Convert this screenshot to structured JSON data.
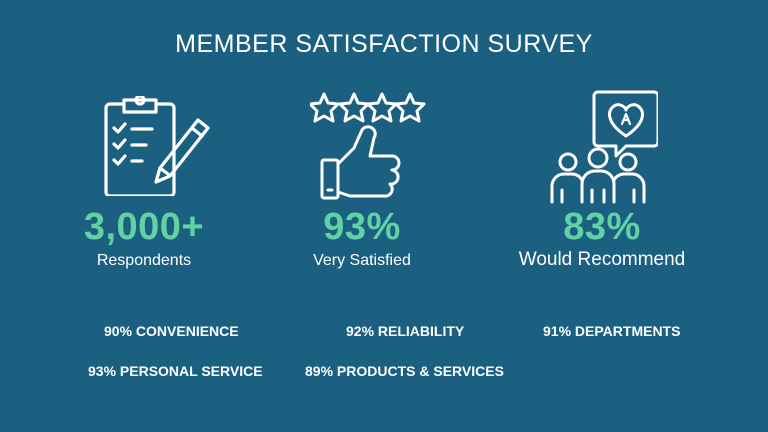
{
  "title": "MEMBER SATISFACTION SURVEY",
  "colors": {
    "background": "#1b6080",
    "accent": "#63d1a3",
    "text": "#ffffff"
  },
  "highlights": [
    {
      "icon": "clipboard-checklist-icon",
      "value": "3,000+",
      "label": "Respondents"
    },
    {
      "icon": "thumbs-up-stars-icon",
      "value": "93%",
      "label": "Very Satisfied"
    },
    {
      "icon": "group-heart-bubble-icon",
      "value": "83%",
      "label": "Would Recommend"
    }
  ],
  "stats": [
    {
      "percent": "90%",
      "label": "CONVENIENCE"
    },
    {
      "percent": "92%",
      "label": "RELIABILITY"
    },
    {
      "percent": "91%",
      "label": "DEPARTMENTS"
    },
    {
      "percent": "93%",
      "label": "PERSONAL SERVICE"
    },
    {
      "percent": "89%",
      "label": "PRODUCTS & SERVICES"
    }
  ]
}
